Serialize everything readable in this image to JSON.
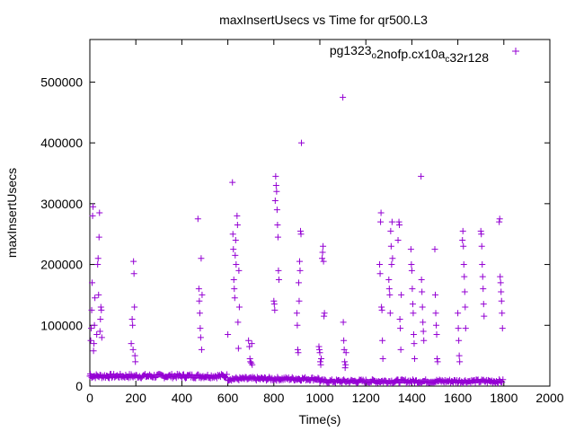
{
  "chart_data": {
    "type": "scatter",
    "title": "maxInsertUsecs vs Time for qr500.L3",
    "xlabel": "Time(s)",
    "ylabel": "maxInsertUsecs",
    "xlim": [
      0,
      2000
    ],
    "ylim": [
      0,
      570000
    ],
    "xticks": [
      "0",
      "200",
      "400",
      "600",
      "800",
      "1000",
      "1200",
      "1400",
      "1600",
      "1800",
      "2000"
    ],
    "yticks": [
      "0",
      "100000",
      "200000",
      "300000",
      "400000",
      "500000"
    ],
    "legend_position": "top-right",
    "marker": "plus",
    "color": "#9400d3",
    "series": [
      {
        "name": "pg1323_o2nofp.cx10a_c32r128",
        "legend_parts": [
          {
            "text": "pg1323"
          },
          {
            "text": "o",
            "sub": true
          },
          {
            "text": "2nofp.cx10a"
          },
          {
            "text": "c",
            "sub": true
          },
          {
            "text": "32r128"
          }
        ],
        "points": [
          [
            2,
            20000
          ],
          [
            4,
            75000
          ],
          [
            6,
            95000
          ],
          [
            8,
            125000
          ],
          [
            10,
            170000
          ],
          [
            12,
            280000
          ],
          [
            14,
            295000
          ],
          [
            16,
            58000
          ],
          [
            18,
            70000
          ],
          [
            20,
            100000
          ],
          [
            22,
            145000
          ],
          [
            30,
            85000
          ],
          [
            34,
            200000
          ],
          [
            36,
            210000
          ],
          [
            38,
            150000
          ],
          [
            40,
            245000
          ],
          [
            42,
            285000
          ],
          [
            44,
            90000
          ],
          [
            46,
            110000
          ],
          [
            48,
            130000
          ],
          [
            50,
            125000
          ],
          [
            52,
            80000
          ],
          [
            180,
            70000
          ],
          [
            184,
            110000
          ],
          [
            186,
            100000
          ],
          [
            188,
            60000
          ],
          [
            190,
            205000
          ],
          [
            192,
            185000
          ],
          [
            194,
            130000
          ],
          [
            196,
            50000
          ],
          [
            198,
            40000
          ],
          [
            470,
            275000
          ],
          [
            474,
            160000
          ],
          [
            476,
            140000
          ],
          [
            478,
            120000
          ],
          [
            480,
            95000
          ],
          [
            482,
            80000
          ],
          [
            484,
            210000
          ],
          [
            486,
            60000
          ],
          [
            488,
            150000
          ],
          [
            600,
            85000
          ],
          [
            620,
            335000
          ],
          [
            622,
            250000
          ],
          [
            624,
            225000
          ],
          [
            626,
            175000
          ],
          [
            628,
            160000
          ],
          [
            630,
            145000
          ],
          [
            632,
            215000
          ],
          [
            634,
            240000
          ],
          [
            636,
            200000
          ],
          [
            640,
            280000
          ],
          [
            642,
            265000
          ],
          [
            644,
            105000
          ],
          [
            646,
            62000
          ],
          [
            648,
            190000
          ],
          [
            650,
            130000
          ],
          [
            690,
            75000
          ],
          [
            694,
            65000
          ],
          [
            696,
            45000
          ],
          [
            698,
            40000
          ],
          [
            702,
            38000
          ],
          [
            704,
            70000
          ],
          [
            706,
            35000
          ],
          [
            800,
            140000
          ],
          [
            802,
            135000
          ],
          [
            804,
            125000
          ],
          [
            806,
            305000
          ],
          [
            808,
            345000
          ],
          [
            810,
            330000
          ],
          [
            812,
            320000
          ],
          [
            814,
            290000
          ],
          [
            816,
            265000
          ],
          [
            818,
            245000
          ],
          [
            820,
            190000
          ],
          [
            822,
            175000
          ],
          [
            900,
            120000
          ],
          [
            902,
            100000
          ],
          [
            904,
            60000
          ],
          [
            906,
            55000
          ],
          [
            908,
            170000
          ],
          [
            910,
            140000
          ],
          [
            912,
            205000
          ],
          [
            914,
            190000
          ],
          [
            916,
            255000
          ],
          [
            918,
            250000
          ],
          [
            920,
            400000
          ],
          [
            996,
            65000
          ],
          [
            998,
            60000
          ],
          [
            1000,
            55000
          ],
          [
            1002,
            40000
          ],
          [
            1004,
            35000
          ],
          [
            1006,
            45000
          ],
          [
            1010,
            210000
          ],
          [
            1012,
            220000
          ],
          [
            1014,
            230000
          ],
          [
            1016,
            205000
          ],
          [
            1018,
            115000
          ],
          [
            1020,
            120000
          ],
          [
            1100,
            475000
          ],
          [
            1102,
            105000
          ],
          [
            1104,
            75000
          ],
          [
            1106,
            60000
          ],
          [
            1108,
            40000
          ],
          [
            1110,
            30000
          ],
          [
            1112,
            35000
          ],
          [
            1114,
            55000
          ],
          [
            1260,
            200000
          ],
          [
            1262,
            185000
          ],
          [
            1264,
            270000
          ],
          [
            1266,
            285000
          ],
          [
            1268,
            130000
          ],
          [
            1270,
            125000
          ],
          [
            1272,
            75000
          ],
          [
            1274,
            45000
          ],
          [
            1300,
            175000
          ],
          [
            1302,
            160000
          ],
          [
            1304,
            150000
          ],
          [
            1306,
            120000
          ],
          [
            1308,
            255000
          ],
          [
            1310,
            230000
          ],
          [
            1312,
            200000
          ],
          [
            1314,
            270000
          ],
          [
            1316,
            210000
          ],
          [
            1340,
            240000
          ],
          [
            1344,
            270000
          ],
          [
            1346,
            265000
          ],
          [
            1348,
            110000
          ],
          [
            1350,
            95000
          ],
          [
            1352,
            60000
          ],
          [
            1354,
            150000
          ],
          [
            1396,
            225000
          ],
          [
            1398,
            200000
          ],
          [
            1400,
            190000
          ],
          [
            1402,
            160000
          ],
          [
            1404,
            135000
          ],
          [
            1406,
            120000
          ],
          [
            1408,
            85000
          ],
          [
            1410,
            70000
          ],
          [
            1412,
            45000
          ],
          [
            1440,
            345000
          ],
          [
            1442,
            175000
          ],
          [
            1444,
            155000
          ],
          [
            1446,
            130000
          ],
          [
            1448,
            105000
          ],
          [
            1450,
            90000
          ],
          [
            1452,
            75000
          ],
          [
            1500,
            225000
          ],
          [
            1502,
            150000
          ],
          [
            1504,
            120000
          ],
          [
            1506,
            100000
          ],
          [
            1508,
            85000
          ],
          [
            1510,
            45000
          ],
          [
            1512,
            40000
          ],
          [
            1600,
            120000
          ],
          [
            1602,
            95000
          ],
          [
            1604,
            75000
          ],
          [
            1606,
            50000
          ],
          [
            1608,
            40000
          ],
          [
            1620,
            240000
          ],
          [
            1622,
            255000
          ],
          [
            1624,
            230000
          ],
          [
            1626,
            200000
          ],
          [
            1628,
            180000
          ],
          [
            1630,
            155000
          ],
          [
            1632,
            130000
          ],
          [
            1634,
            95000
          ],
          [
            1700,
            255000
          ],
          [
            1702,
            250000
          ],
          [
            1704,
            230000
          ],
          [
            1706,
            200000
          ],
          [
            1708,
            180000
          ],
          [
            1710,
            160000
          ],
          [
            1712,
            135000
          ],
          [
            1714,
            115000
          ],
          [
            1780,
            270000
          ],
          [
            1782,
            275000
          ],
          [
            1784,
            180000
          ],
          [
            1786,
            170000
          ],
          [
            1788,
            155000
          ],
          [
            1790,
            140000
          ],
          [
            1792,
            120000
          ],
          [
            1794,
            95000
          ]
        ],
        "baseline": {
          "description": "dense band of points near the bottom",
          "segments": [
            {
              "x_from": 0,
              "x_to": 600,
              "y_min": 13000,
              "y_max": 20000
            },
            {
              "x_from": 600,
              "x_to": 1000,
              "y_min": 9000,
              "y_max": 15000
            },
            {
              "x_from": 1000,
              "x_to": 1800,
              "y_min": 5000,
              "y_max": 11000
            }
          ]
        }
      }
    ]
  }
}
